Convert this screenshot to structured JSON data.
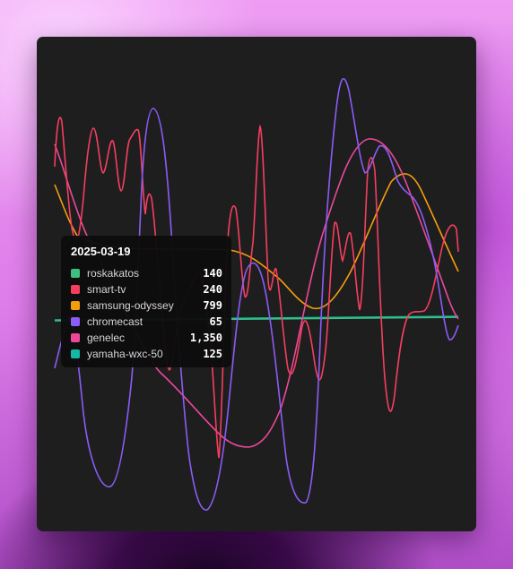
{
  "chart_data": {
    "type": "line",
    "title": "",
    "xlabel": "",
    "ylabel": "",
    "grid": false,
    "legend": "tooltip",
    "x_label": "2025-03-19",
    "series": [
      {
        "name": "roskakatos",
        "color": "#3fbf7f",
        "value": 140
      },
      {
        "name": "smart-tv",
        "color": "#f43f5e",
        "value": 240
      },
      {
        "name": "samsung-odyssey",
        "color": "#f59e0b",
        "value": 799
      },
      {
        "name": "chromecast",
        "color": "#8b5cf6",
        "value": 65
      },
      {
        "name": "genelec",
        "color": "#ec4899",
        "value": 1350
      },
      {
        "name": "yamaha-wxc-50",
        "color": "#14b8a6",
        "value": 125
      }
    ],
    "tooltip": {
      "title": "2025-03-19",
      "rows": [
        {
          "name": "roskakatos",
          "value": "140",
          "color": "#3fbf7f"
        },
        {
          "name": "smart-tv",
          "value": "240",
          "color": "#f43f5e"
        },
        {
          "name": "samsung-odyssey",
          "value": "799",
          "color": "#f59e0b"
        },
        {
          "name": "chromecast",
          "value": "65",
          "color": "#8b5cf6"
        },
        {
          "name": "genelec",
          "value": "1,350",
          "color": "#ec4899"
        },
        {
          "name": "yamaha-wxc-50",
          "value": "125",
          "color": "#14b8a6"
        }
      ]
    }
  }
}
